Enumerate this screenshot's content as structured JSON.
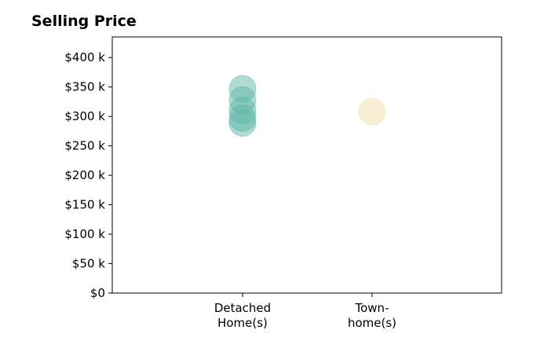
{
  "chart_data": {
    "type": "scatter",
    "title": "Selling Price",
    "xlabel": "",
    "ylabel": "",
    "categories": [
      "Detached\nHome(s)",
      "Town-\nhome(s)"
    ],
    "ylim": [
      0,
      435000
    ],
    "yticks": [
      0,
      50000,
      100000,
      150000,
      200000,
      250000,
      300000,
      350000,
      400000
    ],
    "ytick_labels": [
      "$0",
      "$50 k",
      "$100 k",
      "$150 k",
      "$200 k",
      "$250 k",
      "$300 k",
      "$350 k",
      "$400 k"
    ],
    "grid": false,
    "series": [
      {
        "category_index": 0,
        "color": "#5fb8a8",
        "values": [
          347000,
          328000,
          310000,
          297000,
          289000
        ]
      },
      {
        "category_index": 1,
        "color": "#f3dfb0",
        "values": [
          308000
        ]
      }
    ]
  }
}
